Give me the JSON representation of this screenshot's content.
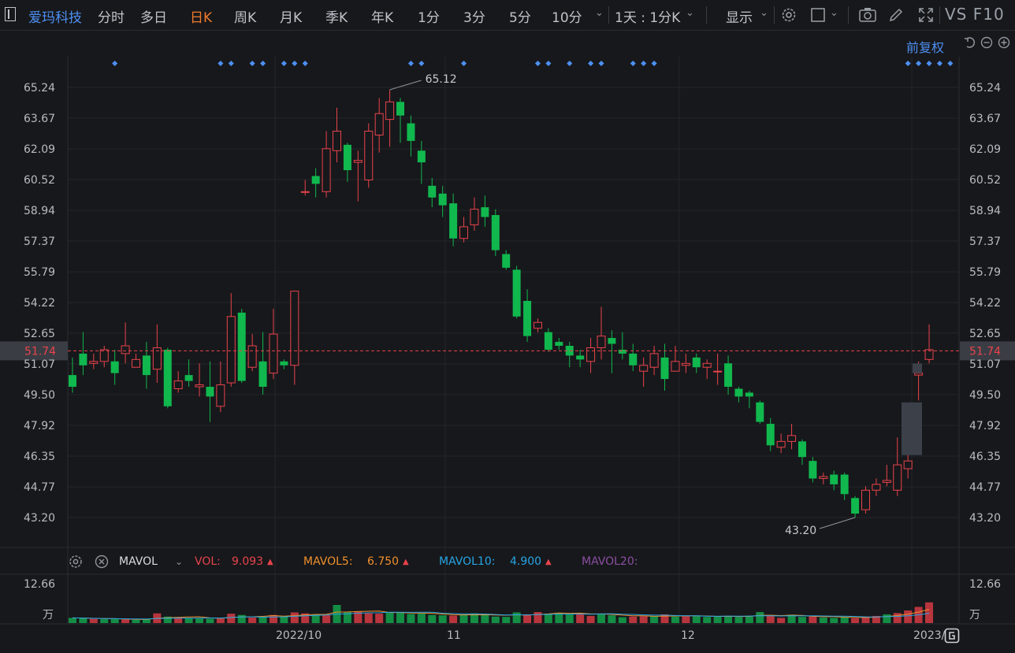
{
  "stock_name": "爱玛科技",
  "period_tabs": [
    {
      "label": "分时",
      "active": false
    },
    {
      "label": "多日",
      "active": false
    },
    {
      "label": "日K",
      "active": true
    },
    {
      "label": "周K",
      "active": false
    },
    {
      "label": "月K",
      "active": false
    },
    {
      "label": "季K",
      "active": false
    },
    {
      "label": "年K",
      "active": false
    },
    {
      "label": "1分",
      "active": false
    },
    {
      "label": "3分",
      "active": false
    },
    {
      "label": "5分",
      "active": false
    },
    {
      "label": "10分",
      "active": false
    }
  ],
  "interval_select": "1天 : 1分K",
  "display_label": "显示",
  "vs_f10": "VS F10",
  "adjust_label": "前复权",
  "icons": {
    "settings": "gear-icon",
    "color": "square-icon",
    "camera": "camera-icon",
    "draw": "pencil-icon",
    "fullscreen": "expand-icon",
    "undo": "undo-icon",
    "zoom_out": "minus-circle-icon",
    "zoom_in": "plus-circle-icon",
    "close": "close-circle-icon"
  },
  "colors": {
    "up": "#e8434b",
    "down": "#10b84e",
    "ma5": "#f0902c",
    "ma10": "#26a6e6",
    "ma20": "#8b4fa3",
    "accent": "#4d8ff2",
    "pending": "#3b4049"
  },
  "chart_data": {
    "type": "candlestick",
    "y_ticks": [
      "65.24",
      "63.67",
      "62.09",
      "60.52",
      "58.94",
      "57.37",
      "55.79",
      "54.22",
      "52.65",
      "51.07",
      "49.50",
      "47.92",
      "46.35",
      "44.77",
      "43.20"
    ],
    "ylim": [
      41.5,
      66.5
    ],
    "current_price": "51.74",
    "high_label": "65.12",
    "low_label": "43.20",
    "x_labels": [
      "2022/10",
      "11",
      "12",
      "2023/"
    ],
    "candles": [
      [
        50.5,
        49.9,
        51.4,
        49.6
      ],
      [
        51.6,
        51.0,
        52.7,
        50.5
      ],
      [
        51.1,
        51.2,
        51.6,
        50.8
      ],
      [
        51.2,
        51.8,
        52.0,
        50.9
      ],
      [
        51.2,
        50.6,
        51.8,
        50.0
      ],
      [
        51.6,
        52.0,
        53.2,
        51.1
      ],
      [
        50.9,
        51.3,
        51.6,
        50.9
      ],
      [
        51.5,
        50.5,
        52.2,
        49.8
      ],
      [
        50.8,
        51.9,
        53.1,
        50.1
      ],
      [
        51.8,
        48.9,
        51.9,
        48.8
      ],
      [
        49.8,
        50.2,
        50.7,
        49.6
      ],
      [
        50.5,
        50.2,
        51.3,
        49.9
      ],
      [
        49.9,
        50.0,
        51.1,
        49.4
      ],
      [
        49.9,
        49.4,
        51.2,
        48.1
      ],
      [
        48.9,
        50.0,
        51.2,
        48.6
      ],
      [
        50.1,
        53.5,
        54.7,
        49.9
      ],
      [
        53.7,
        50.2,
        53.9,
        50.1
      ],
      [
        50.9,
        52.0,
        52.6,
        50.7
      ],
      [
        51.2,
        49.9,
        52.7,
        49.5
      ],
      [
        50.6,
        52.6,
        53.9,
        50.3
      ],
      [
        51.2,
        51.0,
        51.3,
        50.8
      ],
      [
        51.0,
        54.8,
        54.8,
        50.0
      ],
      [
        59.9,
        59.9,
        60.5,
        59.7
      ],
      [
        60.7,
        60.3,
        61.1,
        59.6
      ],
      [
        59.9,
        62.1,
        63.0,
        59.6
      ],
      [
        62.0,
        63.0,
        64.2,
        61.4
      ],
      [
        62.3,
        61.0,
        62.4,
        60.4
      ],
      [
        61.4,
        61.5,
        62.0,
        59.4
      ],
      [
        60.5,
        63.0,
        63.4,
        60.1
      ],
      [
        62.8,
        63.9,
        64.7,
        61.9
      ],
      [
        63.6,
        64.5,
        65.12,
        62.2
      ],
      [
        64.5,
        63.8,
        64.7,
        62.4
      ],
      [
        63.4,
        62.5,
        63.8,
        61.7
      ],
      [
        62.0,
        61.4,
        62.5,
        60.3
      ],
      [
        60.2,
        59.6,
        60.6,
        59.1
      ],
      [
        59.8,
        59.2,
        60.2,
        58.6
      ],
      [
        59.3,
        57.5,
        59.8,
        57.1
      ],
      [
        57.5,
        58.1,
        58.6,
        57.3
      ],
      [
        58.2,
        59.0,
        59.6,
        57.9
      ],
      [
        59.1,
        58.6,
        59.7,
        58.1
      ],
      [
        58.7,
        56.9,
        59.0,
        56.6
      ],
      [
        56.7,
        56.0,
        56.9,
        55.9
      ],
      [
        55.9,
        53.5,
        56.1,
        53.4
      ],
      [
        54.3,
        52.5,
        54.9,
        52.2
      ],
      [
        52.9,
        53.2,
        53.4,
        52.7
      ],
      [
        52.7,
        51.8,
        52.9,
        51.7
      ],
      [
        52.2,
        52.0,
        52.4,
        51.8
      ],
      [
        52.0,
        51.5,
        52.2,
        50.9
      ],
      [
        51.5,
        51.3,
        51.8,
        50.9
      ],
      [
        51.2,
        51.9,
        52.4,
        50.6
      ],
      [
        51.9,
        52.5,
        54.0,
        51.3
      ],
      [
        52.4,
        52.1,
        52.8,
        50.6
      ],
      [
        51.8,
        51.6,
        52.7,
        51.3
      ],
      [
        51.6,
        51.0,
        52.1,
        50.7
      ],
      [
        50.7,
        51.0,
        51.4,
        49.9
      ],
      [
        50.9,
        51.6,
        52.0,
        50.5
      ],
      [
        51.4,
        50.3,
        52.1,
        49.7
      ],
      [
        50.7,
        51.2,
        52.0,
        50.7
      ],
      [
        51.0,
        51.1,
        51.6,
        50.6
      ],
      [
        51.4,
        50.9,
        51.6,
        50.6
      ],
      [
        50.9,
        51.1,
        51.3,
        50.3
      ],
      [
        50.7,
        50.7,
        51.6,
        50.0
      ],
      [
        51.1,
        49.9,
        51.5,
        49.5
      ],
      [
        49.8,
        49.4,
        49.9,
        49.1
      ],
      [
        49.6,
        49.4,
        49.7,
        48.8
      ],
      [
        49.1,
        48.1,
        49.2,
        48.0
      ],
      [
        48.0,
        46.9,
        48.3,
        46.6
      ],
      [
        46.8,
        47.1,
        47.5,
        46.5
      ],
      [
        47.1,
        47.4,
        48.0,
        46.7
      ],
      [
        47.1,
        46.3,
        47.2,
        45.9
      ],
      [
        46.1,
        45.2,
        46.3,
        45.0
      ],
      [
        45.2,
        45.3,
        45.5,
        44.9
      ],
      [
        45.4,
        44.9,
        45.6,
        44.6
      ],
      [
        45.4,
        44.4,
        45.5,
        44.1
      ],
      [
        44.2,
        43.4,
        44.3,
        43.2
      ],
      [
        43.6,
        44.6,
        44.8,
        43.4
      ],
      [
        44.6,
        44.9,
        45.2,
        44.3
      ],
      [
        45.0,
        45.1,
        45.9,
        44.8
      ],
      [
        44.6,
        45.9,
        47.3,
        44.3
      ],
      [
        45.7,
        46.1,
        46.6,
        45.2
      ],
      [
        50.5,
        50.6,
        51.2,
        49.2
      ],
      [
        51.3,
        51.8,
        53.1,
        51.1
      ]
    ],
    "pending_bars": [
      [
        49.1,
        46.4
      ],
      [
        51.1,
        50.6
      ]
    ],
    "volume_legend": {
      "name": "MAVOL",
      "vol_label": "VOL:",
      "vol_value": "9.093",
      "ma5_label": "MAVOL5:",
      "ma5_value": "6.750",
      "ma10_label": "MAVOL10:",
      "ma10_value": "4.900",
      "ma20_label": "MAVOL20:"
    },
    "volume_axis_top": "12.66",
    "volume_axis_unit": "万",
    "volumes": [
      1.6,
      1.5,
      1.3,
      1.2,
      1.2,
      1.1,
      1.0,
      1.1,
      3.0,
      2.0,
      1.8,
      1.5,
      1.4,
      1.3,
      1.4,
      2.9,
      2.5,
      1.7,
      1.9,
      2.5,
      2.0,
      3.3,
      3.0,
      2.6,
      2.6,
      5.6,
      3.4,
      3.6,
      3.0,
      2.9,
      3.4,
      3.4,
      2.8,
      2.9,
      2.5,
      2.4,
      2.3,
      2.6,
      3.0,
      2.6,
      2.0,
      1.9,
      3.3,
      2.7,
      3.4,
      2.9,
      3.2,
      2.8,
      3.1,
      2.2,
      2.9,
      2.4,
      1.8,
      2.0,
      2.1,
      2.2,
      2.7,
      2.0,
      2.2,
      2.1,
      1.9,
      2.1,
      2.2,
      1.9,
      2.3,
      3.4,
      2.3,
      1.6,
      2.6,
      1.9,
      2.1,
      1.7,
      1.6,
      1.8,
      1.5,
      2.0,
      2.2,
      2.7,
      3.1,
      3.9,
      5.0,
      6.4
    ],
    "volume_up": [
      false,
      false,
      true,
      false,
      false,
      true,
      false,
      false,
      true,
      false,
      true,
      false,
      false,
      false,
      true,
      true,
      false,
      true,
      false,
      true,
      false,
      true,
      true,
      false,
      true,
      false,
      false,
      true,
      true,
      true,
      false,
      false,
      false,
      false,
      false,
      false,
      true,
      false,
      false,
      false,
      false,
      false,
      false,
      true,
      true,
      false,
      false,
      false,
      true,
      true,
      false,
      false,
      false,
      true,
      true,
      false,
      true,
      false,
      true,
      false,
      false,
      false,
      false,
      false,
      false,
      false,
      true,
      true,
      false,
      false,
      true,
      false,
      false,
      false,
      true,
      true,
      true,
      false,
      true,
      true,
      true,
      true
    ]
  }
}
